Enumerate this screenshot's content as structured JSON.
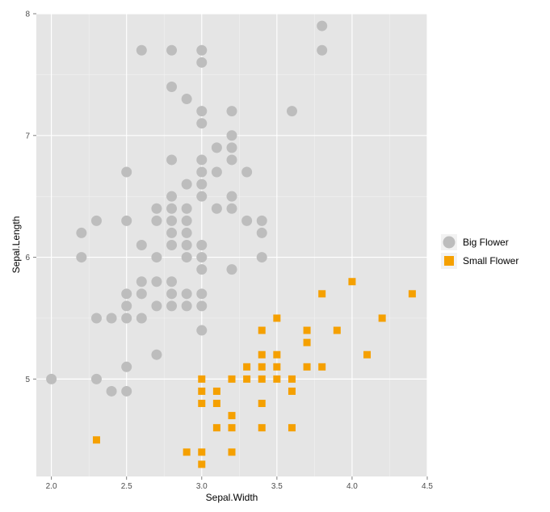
{
  "chart_data": {
    "type": "scatter",
    "xlabel": "Sepal.Width",
    "ylabel": "Sepal.Length",
    "xlim": [
      1.9,
      4.5
    ],
    "ylim": [
      4.2,
      8.0
    ],
    "x_ticks": [
      {
        "value": 2.0,
        "label": "2.0"
      },
      {
        "value": 2.5,
        "label": "2.5"
      },
      {
        "value": 3.0,
        "label": "3.0"
      },
      {
        "value": 3.5,
        "label": "3.5"
      },
      {
        "value": 4.0,
        "label": "4.0"
      },
      {
        "value": 4.5,
        "label": "4.5"
      }
    ],
    "y_ticks": [
      {
        "value": 5,
        "label": "5"
      },
      {
        "value": 6,
        "label": "6"
      },
      {
        "value": 7,
        "label": "7"
      },
      {
        "value": 8,
        "label": "8"
      }
    ],
    "grid": true,
    "legend_position": "right",
    "background_color": "#e5e5e5",
    "grid_color": "#ffffff",
    "series": [
      {
        "name": "Big Flower",
        "marker": "circle",
        "color": "#bdbdbd",
        "points": [
          [
            2.6,
            7.7
          ],
          [
            2.8,
            7.7
          ],
          [
            3.0,
            7.7
          ],
          [
            3.8,
            7.7
          ],
          [
            3.8,
            7.9
          ],
          [
            3.0,
            7.6
          ],
          [
            2.8,
            7.4
          ],
          [
            2.9,
            7.3
          ],
          [
            3.0,
            7.2
          ],
          [
            3.2,
            7.2
          ],
          [
            3.6,
            7.2
          ],
          [
            3.0,
            7.1
          ],
          [
            3.2,
            7.0
          ],
          [
            3.1,
            6.9
          ],
          [
            3.2,
            6.9
          ],
          [
            2.8,
            6.8
          ],
          [
            3.0,
            6.8
          ],
          [
            3.2,
            6.8
          ],
          [
            2.5,
            6.7
          ],
          [
            3.0,
            6.7
          ],
          [
            3.1,
            6.7
          ],
          [
            3.3,
            6.7
          ],
          [
            2.9,
            6.6
          ],
          [
            3.0,
            6.6
          ],
          [
            2.8,
            6.5
          ],
          [
            3.0,
            6.5
          ],
          [
            3.2,
            6.5
          ],
          [
            2.7,
            6.4
          ],
          [
            2.8,
            6.4
          ],
          [
            2.9,
            6.4
          ],
          [
            3.1,
            6.4
          ],
          [
            3.2,
            6.4
          ],
          [
            2.3,
            6.3
          ],
          [
            2.5,
            6.3
          ],
          [
            2.7,
            6.3
          ],
          [
            2.8,
            6.3
          ],
          [
            2.9,
            6.3
          ],
          [
            3.3,
            6.3
          ],
          [
            3.4,
            6.3
          ],
          [
            2.2,
            6.2
          ],
          [
            2.8,
            6.2
          ],
          [
            2.9,
            6.2
          ],
          [
            3.4,
            6.2
          ],
          [
            2.6,
            6.1
          ],
          [
            2.8,
            6.1
          ],
          [
            2.9,
            6.1
          ],
          [
            3.0,
            6.1
          ],
          [
            2.2,
            6.0
          ],
          [
            2.7,
            6.0
          ],
          [
            2.9,
            6.0
          ],
          [
            3.0,
            6.0
          ],
          [
            3.4,
            6.0
          ],
          [
            3.0,
            5.9
          ],
          [
            3.2,
            5.9
          ],
          [
            2.6,
            5.8
          ],
          [
            2.7,
            5.8
          ],
          [
            2.8,
            5.8
          ],
          [
            2.5,
            5.7
          ],
          [
            2.6,
            5.7
          ],
          [
            2.8,
            5.7
          ],
          [
            2.9,
            5.7
          ],
          [
            3.0,
            5.7
          ],
          [
            2.5,
            5.6
          ],
          [
            2.7,
            5.6
          ],
          [
            2.8,
            5.6
          ],
          [
            2.9,
            5.6
          ],
          [
            3.0,
            5.6
          ],
          [
            2.3,
            5.5
          ],
          [
            2.4,
            5.5
          ],
          [
            2.5,
            5.5
          ],
          [
            2.6,
            5.5
          ],
          [
            3.0,
            5.4
          ],
          [
            2.7,
            5.2
          ],
          [
            2.5,
            5.1
          ],
          [
            2.0,
            5.0
          ],
          [
            2.3,
            5.0
          ],
          [
            2.4,
            4.9
          ],
          [
            2.5,
            4.9
          ]
        ]
      },
      {
        "name": "Small Flower",
        "marker": "square",
        "color": "#f5a000",
        "points": [
          [
            4.0,
            5.8
          ],
          [
            4.4,
            5.7
          ],
          [
            3.8,
            5.7
          ],
          [
            3.5,
            5.5
          ],
          [
            4.2,
            5.5
          ],
          [
            3.4,
            5.4
          ],
          [
            3.7,
            5.4
          ],
          [
            3.9,
            5.4
          ],
          [
            3.7,
            5.3
          ],
          [
            3.4,
            5.2
          ],
          [
            3.5,
            5.2
          ],
          [
            4.1,
            5.2
          ],
          [
            3.3,
            5.1
          ],
          [
            3.4,
            5.1
          ],
          [
            3.5,
            5.1
          ],
          [
            3.7,
            5.1
          ],
          [
            3.8,
            5.1
          ],
          [
            3.0,
            5.0
          ],
          [
            3.2,
            5.0
          ],
          [
            3.3,
            5.0
          ],
          [
            3.4,
            5.0
          ],
          [
            3.5,
            5.0
          ],
          [
            3.6,
            5.0
          ],
          [
            3.0,
            4.9
          ],
          [
            3.1,
            4.9
          ],
          [
            3.6,
            4.9
          ],
          [
            3.0,
            4.8
          ],
          [
            3.1,
            4.8
          ],
          [
            3.4,
            4.8
          ],
          [
            3.2,
            4.7
          ],
          [
            3.1,
            4.6
          ],
          [
            3.2,
            4.6
          ],
          [
            3.4,
            4.6
          ],
          [
            3.6,
            4.6
          ],
          [
            2.3,
            4.5
          ],
          [
            2.9,
            4.4
          ],
          [
            3.0,
            4.4
          ],
          [
            3.2,
            4.4
          ],
          [
            3.0,
            4.3
          ]
        ]
      }
    ]
  }
}
